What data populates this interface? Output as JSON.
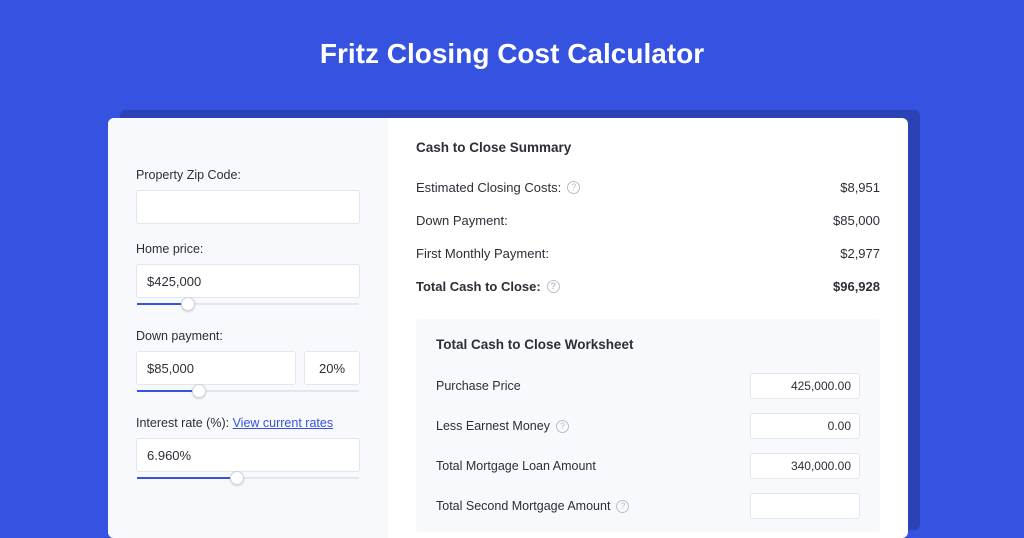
{
  "colors": {
    "page_bg": "#3553e0",
    "card_shadow": "#2a42b5",
    "card_bg": "#ffffff",
    "panel_bg": "#f7f9fc",
    "border": "#e3e6ec",
    "text": "#2b2f36",
    "link": "#3553e0",
    "muted_icon": "#b9bec8"
  },
  "title": "Fritz Closing Cost Calculator",
  "left": {
    "zip_label": "Property Zip Code:",
    "zip_value": "",
    "home_price_label": "Home price:",
    "home_price_value": "$425,000",
    "home_price_slider": {
      "fill_pct": 23,
      "thumb_pct": 23
    },
    "down_payment_label": "Down payment:",
    "down_payment_value": "$85,000",
    "down_payment_pct": "20%",
    "down_payment_slider": {
      "fill_pct": 28,
      "thumb_pct": 28
    },
    "interest_label_prefix": "Interest rate (%): ",
    "interest_link": "View current rates",
    "interest_value": "6.960%",
    "interest_slider": {
      "fill_pct": 45,
      "thumb_pct": 45
    }
  },
  "summary": {
    "title": "Cash to Close Summary",
    "rows": [
      {
        "label": "Estimated Closing Costs:",
        "help": true,
        "value": "$8,951",
        "bold": false
      },
      {
        "label": "Down Payment:",
        "help": false,
        "value": "$85,000",
        "bold": false
      },
      {
        "label": "First Monthly Payment:",
        "help": false,
        "value": "$2,977",
        "bold": false
      },
      {
        "label": "Total Cash to Close:",
        "help": true,
        "value": "$96,928",
        "bold": true
      }
    ]
  },
  "worksheet": {
    "title": "Total Cash to Close Worksheet",
    "rows": [
      {
        "label": "Purchase Price",
        "help": false,
        "value": "425,000.00"
      },
      {
        "label": "Less Earnest Money",
        "help": true,
        "value": "0.00"
      },
      {
        "label": "Total Mortgage Loan Amount",
        "help": false,
        "value": "340,000.00"
      },
      {
        "label": "Total Second Mortgage Amount",
        "help": true,
        "value": ""
      }
    ]
  }
}
